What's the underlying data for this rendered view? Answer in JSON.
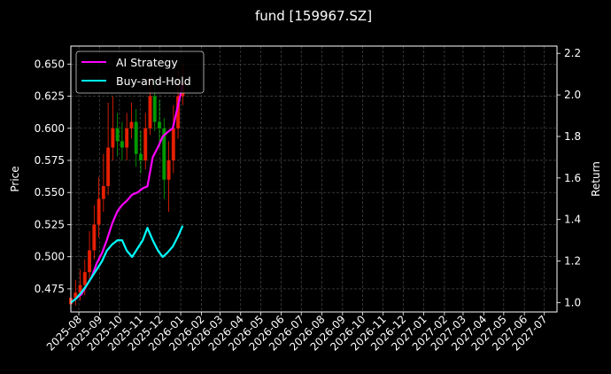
{
  "chart_data": {
    "type": "line",
    "title": "fund [159967.SZ]",
    "ylabel_left": "Price",
    "ylabel_right": "Return",
    "y_left_ticks": [
      "0.475",
      "0.500",
      "0.525",
      "0.550",
      "0.575",
      "0.600",
      "0.625",
      "0.650"
    ],
    "y_left_tick_values": [
      0.475,
      0.5,
      0.525,
      0.55,
      0.575,
      0.6,
      0.625,
      0.65
    ],
    "y_left_range": [
      0.457,
      0.664
    ],
    "y_right_ticks": [
      "1.0",
      "1.2",
      "1.4",
      "1.6",
      "1.8",
      "2.0",
      "2.2"
    ],
    "y_right_tick_values": [
      1.0,
      1.2,
      1.4,
      1.6,
      1.8,
      2.0,
      2.2
    ],
    "y_right_range": [
      0.955,
      2.235
    ],
    "x_range": [
      "2025-07-20",
      "2027-07-20"
    ],
    "x_ticks": [
      "2025-08",
      "2025-09",
      "2025-10",
      "2025-11",
      "2025-12",
      "2026-01",
      "2026-02",
      "2026-03",
      "2026-04",
      "2026-05",
      "2026-06",
      "2026-07",
      "2026-08",
      "2026-09",
      "2026-10",
      "2026-11",
      "2026-12",
      "2027-01",
      "2027-02",
      "2027-03",
      "2027-04",
      "2027-05",
      "2027-06",
      "2027-07"
    ],
    "grid": true,
    "legend_position": "top-left",
    "colors": {
      "background": "#000000",
      "ai_strategy": "#ff00ff",
      "buy_and_hold": "#00ffff",
      "candle_up": "#ff2200",
      "candle_down": "#00aa00",
      "grid": "#555555",
      "text": "#ffffff"
    },
    "series": [
      {
        "name": "AI Strategy",
        "axis": "right",
        "x": [
          "2025-07-20",
          "2025-07-28",
          "2025-08-05",
          "2025-08-12",
          "2025-08-20",
          "2025-08-28",
          "2025-09-05",
          "2025-09-12",
          "2025-09-20",
          "2025-09-28",
          "2025-10-05",
          "2025-10-12",
          "2025-10-20",
          "2025-10-28",
          "2025-11-05",
          "2025-11-12",
          "2025-11-20",
          "2025-11-28",
          "2025-12-05",
          "2025-12-12",
          "2025-12-20",
          "2025-12-28",
          "2026-01-04"
        ],
        "values": [
          1.0,
          1.02,
          1.04,
          1.08,
          1.12,
          1.19,
          1.24,
          1.3,
          1.38,
          1.44,
          1.47,
          1.49,
          1.52,
          1.53,
          1.55,
          1.56,
          1.7,
          1.75,
          1.8,
          1.82,
          1.84,
          1.95,
          2.05
        ]
      },
      {
        "name": "Buy-and-Hold",
        "axis": "right",
        "x": [
          "2025-07-20",
          "2025-07-28",
          "2025-08-05",
          "2025-08-12",
          "2025-08-20",
          "2025-08-28",
          "2025-09-05",
          "2025-09-12",
          "2025-09-20",
          "2025-09-28",
          "2025-10-05",
          "2025-10-12",
          "2025-10-20",
          "2025-10-28",
          "2025-11-05",
          "2025-11-12",
          "2025-11-20",
          "2025-11-28",
          "2025-12-05",
          "2025-12-12",
          "2025-12-20",
          "2025-12-28",
          "2026-01-04"
        ],
        "values": [
          1.0,
          1.02,
          1.05,
          1.08,
          1.12,
          1.16,
          1.2,
          1.25,
          1.28,
          1.3,
          1.3,
          1.25,
          1.22,
          1.26,
          1.3,
          1.36,
          1.3,
          1.25,
          1.22,
          1.24,
          1.27,
          1.32,
          1.37
        ]
      }
    ],
    "candles": {
      "name": "Price",
      "axis": "left",
      "x": [
        "2025-07-20",
        "2025-07-27",
        "2025-08-03",
        "2025-08-10",
        "2025-08-17",
        "2025-08-24",
        "2025-08-31",
        "2025-09-07",
        "2025-09-14",
        "2025-09-21",
        "2025-09-28",
        "2025-10-05",
        "2025-10-12",
        "2025-10-19",
        "2025-10-26",
        "2025-11-02",
        "2025-11-09",
        "2025-11-16",
        "2025-11-23",
        "2025-11-30",
        "2025-12-07",
        "2025-12-14",
        "2025-12-21",
        "2025-12-28",
        "2026-01-04"
      ],
      "open": [
        0.463,
        0.468,
        0.472,
        0.478,
        0.488,
        0.505,
        0.525,
        0.545,
        0.555,
        0.585,
        0.6,
        0.59,
        0.585,
        0.6,
        0.605,
        0.58,
        0.575,
        0.6,
        0.625,
        0.605,
        0.6,
        0.56,
        0.575,
        0.6,
        0.625
      ],
      "close": [
        0.468,
        0.472,
        0.478,
        0.488,
        0.505,
        0.525,
        0.545,
        0.555,
        0.585,
        0.6,
        0.59,
        0.585,
        0.6,
        0.605,
        0.58,
        0.575,
        0.6,
        0.625,
        0.605,
        0.6,
        0.56,
        0.575,
        0.6,
        0.625,
        0.635
      ],
      "high": [
        0.473,
        0.482,
        0.49,
        0.498,
        0.52,
        0.54,
        0.562,
        0.58,
        0.62,
        0.625,
        0.612,
        0.605,
        0.612,
        0.62,
        0.615,
        0.598,
        0.612,
        0.64,
        0.64,
        0.622,
        0.608,
        0.59,
        0.618,
        0.645,
        0.65
      ],
      "low": [
        0.459,
        0.462,
        0.466,
        0.47,
        0.482,
        0.498,
        0.515,
        0.535,
        0.548,
        0.575,
        0.578,
        0.575,
        0.575,
        0.592,
        0.57,
        0.565,
        0.568,
        0.595,
        0.598,
        0.585,
        0.545,
        0.535,
        0.565,
        0.592,
        0.618
      ]
    }
  }
}
